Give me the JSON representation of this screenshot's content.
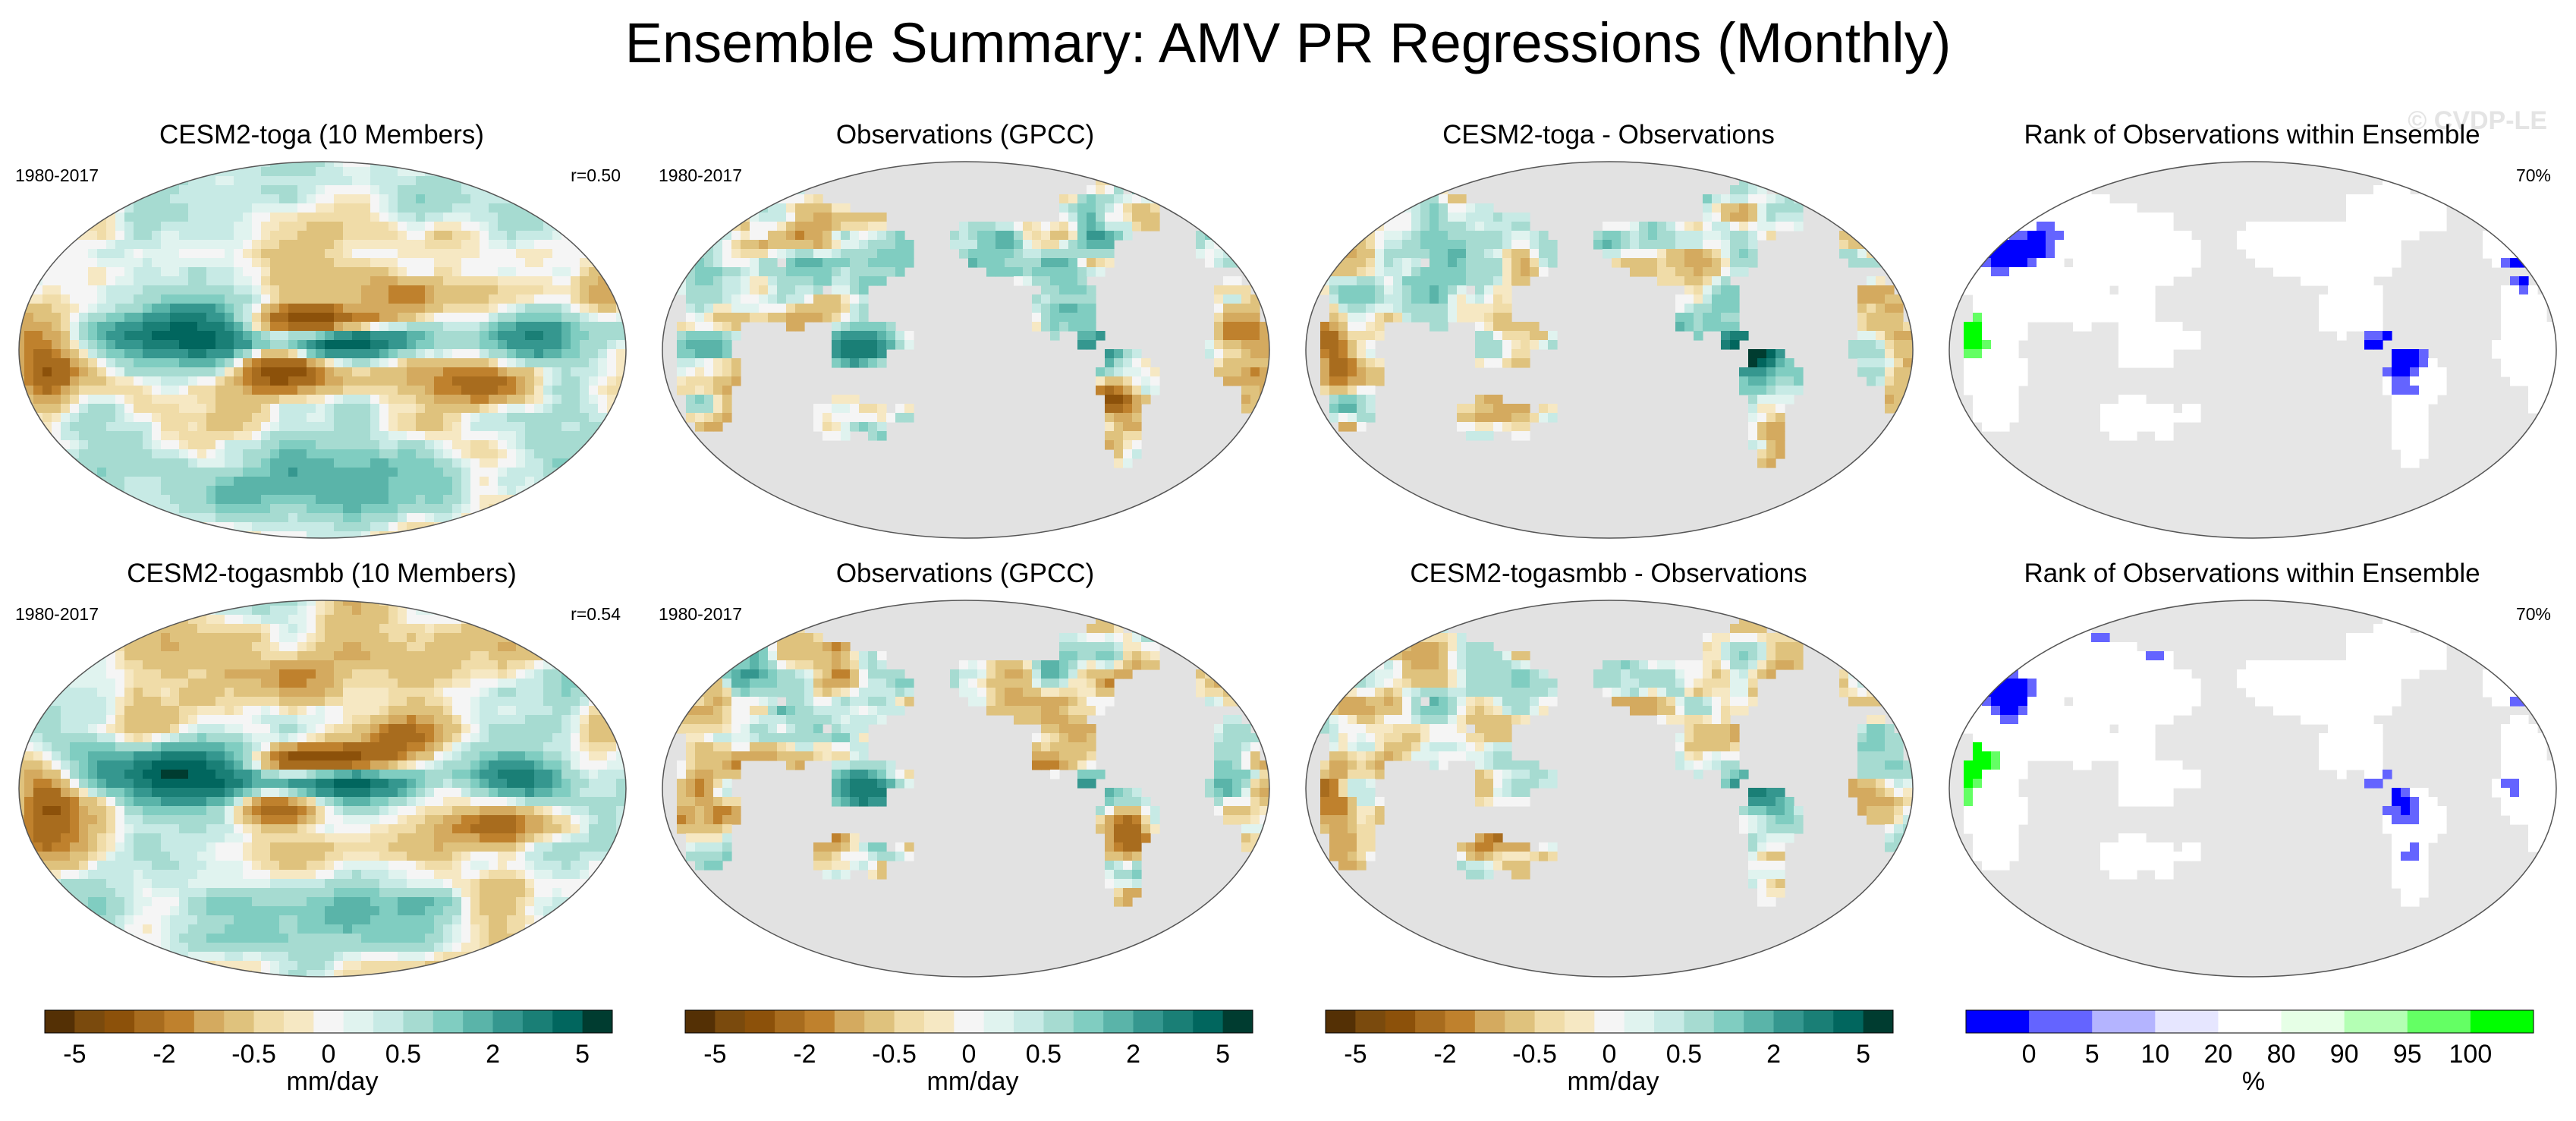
{
  "title": "Ensemble Summary: AMV PR Regressions (Monthly)",
  "watermark": "© CVDP-LE",
  "panels": [
    {
      "title": "CESM2-toga (10 Members)",
      "left": "1980-2017",
      "right": "r=0.50",
      "kind": "model",
      "variant": 0
    },
    {
      "title": "Observations (GPCC)",
      "left": "1980-2017",
      "right": "",
      "kind": "obs",
      "variant": 0
    },
    {
      "title": "CESM2-toga - Observations",
      "left": "",
      "right": "",
      "kind": "diff",
      "variant": 0
    },
    {
      "title": "Rank of Observations within Ensemble",
      "left": "",
      "right": "70%",
      "kind": "rank",
      "variant": 0
    },
    {
      "title": "CESM2-togasmbb (10 Members)",
      "left": "1980-2017",
      "right": "r=0.54",
      "kind": "model",
      "variant": 1
    },
    {
      "title": "Observations (GPCC)",
      "left": "1980-2017",
      "right": "",
      "kind": "obs",
      "variant": 1
    },
    {
      "title": "CESM2-togasmbb - Observations",
      "left": "",
      "right": "",
      "kind": "diff",
      "variant": 1
    },
    {
      "title": "Rank of Observations within Ensemble",
      "left": "",
      "right": "70%",
      "kind": "rank",
      "variant": 1
    }
  ],
  "colorbars": [
    {
      "label": "mm/day",
      "ticks": [
        "-5",
        "-2",
        "-0.5",
        "0",
        "0.5",
        "2",
        "5"
      ],
      "colors": [
        "#543005",
        "#7a4a0d",
        "#8c510a",
        "#a86c1e",
        "#bf812d",
        "#d4aa5f",
        "#dfc27d",
        "#f0dca8",
        "#f6e8c3",
        "#f5f5f5",
        "#e0f3ef",
        "#c7eae5",
        "#a6dbd1",
        "#80cdc1",
        "#5ab4a9",
        "#35978f",
        "#1a7f76",
        "#01665e",
        "#003c30"
      ]
    },
    {
      "label": "mm/day",
      "ticks": [
        "-5",
        "-2",
        "-0.5",
        "0",
        "0.5",
        "2",
        "5"
      ],
      "colors": [
        "#543005",
        "#7a4a0d",
        "#8c510a",
        "#a86c1e",
        "#bf812d",
        "#d4aa5f",
        "#dfc27d",
        "#f0dca8",
        "#f6e8c3",
        "#f5f5f5",
        "#e0f3ef",
        "#c7eae5",
        "#a6dbd1",
        "#80cdc1",
        "#5ab4a9",
        "#35978f",
        "#1a7f76",
        "#01665e",
        "#003c30"
      ]
    },
    {
      "label": "mm/day",
      "ticks": [
        "-5",
        "-2",
        "-0.5",
        "0",
        "0.5",
        "2",
        "5"
      ],
      "colors": [
        "#543005",
        "#7a4a0d",
        "#8c510a",
        "#a86c1e",
        "#bf812d",
        "#d4aa5f",
        "#dfc27d",
        "#f0dca8",
        "#f6e8c3",
        "#f5f5f5",
        "#e0f3ef",
        "#c7eae5",
        "#a6dbd1",
        "#80cdc1",
        "#5ab4a9",
        "#35978f",
        "#1a7f76",
        "#01665e",
        "#003c30"
      ]
    },
    {
      "label": "%",
      "ticks": [
        "0",
        "5",
        "10",
        "20",
        "80",
        "90",
        "95",
        "100"
      ],
      "colors": [
        "#0000ff",
        "#6464ff",
        "#b4b4ff",
        "#e6e6ff",
        "#ffffff",
        "#e6ffe6",
        "#b4ffb4",
        "#64ff64",
        "#00ff00"
      ]
    }
  ],
  "chart_data": {
    "type": "heatmap",
    "title": "Ensemble Summary: AMV PR Regressions (Monthly)",
    "period": "1980-2017",
    "units": "mm/day",
    "regression_levels": [
      -5,
      -2,
      -0.5,
      0,
      0.5,
      2,
      5
    ],
    "rank_levels_percent": [
      0,
      5,
      10,
      20,
      80,
      90,
      95,
      100
    ],
    "pattern_correlations": [
      {
        "model": "CESM2-toga",
        "r": 0.5
      },
      {
        "model": "CESM2-togasmbb",
        "r": 0.54
      }
    ],
    "rank_within_range_percent": [
      {
        "model": "CESM2-toga",
        "value": 70
      },
      {
        "model": "CESM2-togasmbb",
        "value": 70
      }
    ]
  }
}
